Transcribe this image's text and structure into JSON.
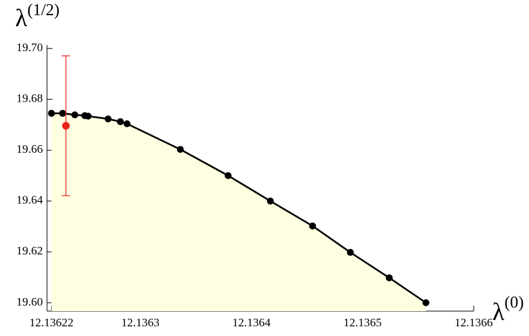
{
  "chart_data": {
    "type": "line",
    "xlabel": "λ",
    "xlabel_superscript": "(0)",
    "ylabel": "λ",
    "ylabel_superscript": "(1/2)",
    "x": [
      12.13622,
      12.13623,
      12.136241,
      12.13625,
      12.136253,
      12.136271,
      12.136282,
      12.136288,
      12.136336,
      12.136379,
      12.136417,
      12.136455,
      12.136489,
      12.136524,
      12.136557
    ],
    "series": [
      {
        "color": "#000000",
        "fill": "#fefee0",
        "values": [
          19.6745,
          19.6745,
          19.6739,
          19.6736,
          19.6734,
          19.6723,
          19.6712,
          19.6704,
          19.6603,
          19.65,
          19.64,
          19.6302,
          19.6198,
          19.6098,
          19.6
        ]
      }
    ],
    "error_points": [
      {
        "x": 12.136233,
        "y": 19.6696,
        "yerr": 0.0275,
        "color": "#e8201c"
      }
    ],
    "xlim": [
      12.136216,
      12.1366
    ],
    "ylim": [
      19.5967,
      19.7014
    ],
    "xticks": [
      12.13622,
      12.1363,
      12.1364,
      12.1365,
      12.1366
    ],
    "yticks": [
      {
        "value": 19.6,
        "label": "19.60"
      },
      {
        "value": 19.62,
        "label": "19.62"
      },
      {
        "value": 19.64,
        "label": "19.64"
      },
      {
        "value": 19.66,
        "label": "19.66"
      },
      {
        "value": 19.68,
        "label": "19.68"
      },
      {
        "value": 19.7,
        "label": "19.70"
      }
    ]
  }
}
